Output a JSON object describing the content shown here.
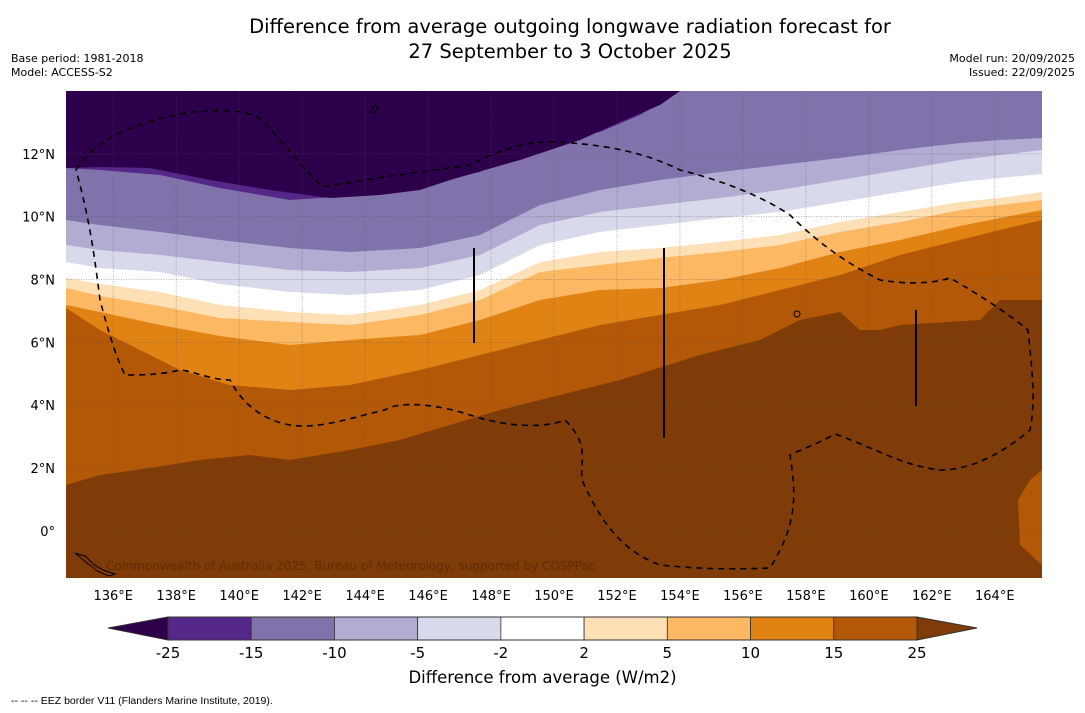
{
  "header": {
    "title_line1": "Difference from average outgoing longwave radiation forecast for",
    "title_line2": "27 September to 3 October 2025",
    "base_period": "Base period: 1981-2018",
    "model": "Model: ACCESS-S2",
    "model_run": "Model run: 20/09/2025",
    "issued": "Issued: 22/09/2025"
  },
  "map": {
    "lon_range": [
      134.5,
      165.5
    ],
    "lat_range": [
      -1.5,
      14.0
    ],
    "lon_ticks": [
      "136°E",
      "138°E",
      "140°E",
      "142°E",
      "144°E",
      "146°E",
      "148°E",
      "150°E",
      "152°E",
      "154°E",
      "156°E",
      "158°E",
      "160°E",
      "162°E",
      "164°E"
    ],
    "lon_values": [
      136,
      138,
      140,
      142,
      144,
      146,
      148,
      150,
      152,
      154,
      156,
      158,
      160,
      162,
      164
    ],
    "lat_ticks": [
      "12°N",
      "10°N",
      "8°N",
      "6°N",
      "4°N",
      "2°N",
      "0°"
    ],
    "lat_values": [
      12,
      10,
      8,
      6,
      4,
      2,
      0
    ],
    "copyright": "© Commonwealth of Australia 2025, Bureau of Meteorology, supported by COSPPac",
    "gridlines": "dotted"
  },
  "colorbar": {
    "title": "Difference from average (W/m2)",
    "tick_labels": [
      "-25",
      "-15",
      "-10",
      "-5",
      "-2",
      "2",
      "5",
      "10",
      "15",
      "25"
    ],
    "colors": {
      "below_-25": "#2d004b",
      "-25_-15": "#542788",
      "-15_-10": "#8073ac",
      "-10_-5": "#b2abd2",
      "-5_-2": "#d8daeb",
      "-2_2": "#ffffff",
      "2_5": "#fee0b6",
      "5_10": "#fdb863",
      "10_15": "#e08214",
      "15_25": "#b35806",
      "above_25": "#7f3b08"
    }
  },
  "footnote": "--  --  -- EEZ border V11 (Flanders Marine Institute, 2019)."
}
